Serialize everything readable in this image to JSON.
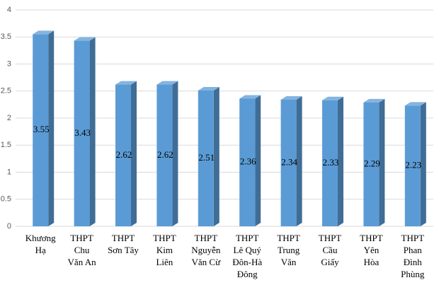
{
  "chart_data": {
    "type": "bar3d",
    "categories": [
      [
        "Khương",
        "Hạ"
      ],
      [
        "THPT",
        "Chu",
        "Văn An"
      ],
      [
        "THPT",
        "Sơn Tây"
      ],
      [
        "THPT",
        "Kim",
        "Liên"
      ],
      [
        "THPT",
        "Nguyễn",
        "Văn Cừ"
      ],
      [
        "THPT",
        "Lê Quý",
        "Đôn-Hà",
        "Đông"
      ],
      [
        "THPT",
        "Trung",
        "Văn"
      ],
      [
        "THPT",
        "Cầu",
        "Giấy"
      ],
      [
        "THPT",
        "Yên",
        "Hòa"
      ],
      [
        "THPT",
        "Phan",
        "Đình",
        "Phùng"
      ]
    ],
    "values": [
      3.55,
      3.43,
      2.62,
      2.62,
      2.51,
      2.36,
      2.34,
      2.33,
      2.29,
      2.23
    ],
    "color": "#5b9bd5",
    "ylim": [
      0,
      4
    ],
    "yticks": [
      0,
      0.5,
      1,
      1.5,
      2,
      2.5,
      3,
      3.5,
      4
    ],
    "grid": true
  }
}
